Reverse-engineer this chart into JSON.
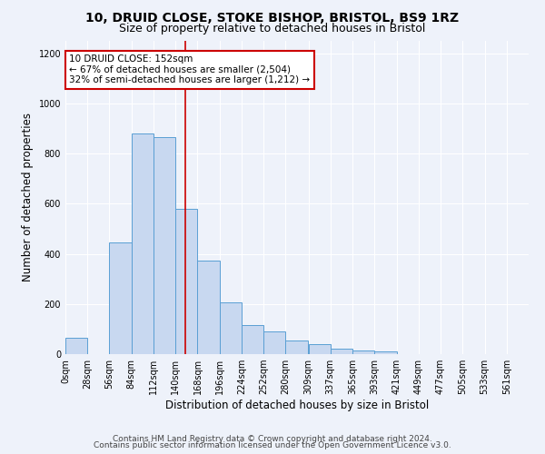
{
  "title_line1": "10, DRUID CLOSE, STOKE BISHOP, BRISTOL, BS9 1RZ",
  "title_line2": "Size of property relative to detached houses in Bristol",
  "xlabel": "Distribution of detached houses by size in Bristol",
  "ylabel": "Number of detached properties",
  "bar_left_edges": [
    0,
    28,
    56,
    84,
    112,
    140,
    168,
    196,
    224,
    252,
    280,
    309,
    337,
    365,
    393,
    421,
    449,
    477,
    505,
    533
  ],
  "bar_heights": [
    65,
    0,
    445,
    880,
    865,
    580,
    375,
    205,
    115,
    90,
    55,
    40,
    20,
    15,
    10,
    0,
    0,
    0,
    0,
    0
  ],
  "bar_color": "#c8d8f0",
  "bar_edge_color": "#5a9fd4",
  "tick_labels": [
    "0sqm",
    "28sqm",
    "56sqm",
    "84sqm",
    "112sqm",
    "140sqm",
    "168sqm",
    "196sqm",
    "224sqm",
    "252sqm",
    "280sqm",
    "309sqm",
    "337sqm",
    "365sqm",
    "393sqm",
    "421sqm",
    "449sqm",
    "477sqm",
    "505sqm",
    "533sqm",
    "561sqm"
  ],
  "ylim": [
    0,
    1250
  ],
  "yticks": [
    0,
    200,
    400,
    600,
    800,
    1000,
    1200
  ],
  "property_size": 152,
  "vline_color": "#cc0000",
  "annotation_text": "10 DRUID CLOSE: 152sqm\n← 67% of detached houses are smaller (2,504)\n32% of semi-detached houses are larger (1,212) →",
  "footer_line1": "Contains HM Land Registry data © Crown copyright and database right 2024.",
  "footer_line2": "Contains public sector information licensed under the Open Government Licence v3.0.",
  "background_color": "#eef2fa",
  "plot_bg_color": "#eef2fa",
  "grid_color": "#ffffff",
  "title_fontsize": 10,
  "subtitle_fontsize": 9,
  "axis_label_fontsize": 8.5,
  "tick_fontsize": 7,
  "annotation_fontsize": 7.5,
  "footer_fontsize": 6.5
}
